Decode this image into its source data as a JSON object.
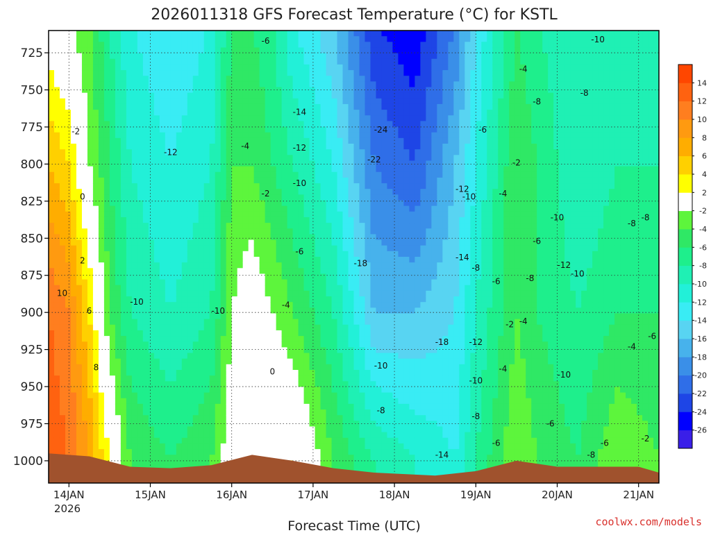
{
  "chart_data": {
    "type": "heatmap",
    "title": "2026011318 GFS Forecast Temperature (°C) for KSTL",
    "xlabel": "Forecast Time (UTC)",
    "ylabel": "",
    "credit": "coolwx.com/models",
    "y_axis": {
      "quantity": "pressure (hPa)",
      "inverted": true,
      "range": [
        1015,
        710
      ],
      "ticks": [
        725,
        750,
        775,
        800,
        825,
        850,
        875,
        900,
        925,
        950,
        975,
        1000
      ],
      "tick_labels": [
        "725",
        "750",
        "775",
        "800",
        "825",
        "850",
        "875",
        "900",
        "925",
        "950",
        "975",
        "1000"
      ]
    },
    "x_axis": {
      "start": "2026-01-13T18",
      "end": "2026-01-21T06",
      "ticks": [
        "2026-01-14T00",
        "2026-01-15T00",
        "2026-01-16T00",
        "2026-01-17T00",
        "2026-01-18T00",
        "2026-01-19T00",
        "2026-01-20T00",
        "2026-01-21T00"
      ],
      "tick_labels": [
        "14JAN",
        "15JAN",
        "16JAN",
        "17JAN",
        "18JAN",
        "19JAN",
        "20JAN",
        "21JAN"
      ],
      "year_label": "2026"
    },
    "grid": true,
    "colorbar": {
      "placement": "right",
      "levels": [
        -28,
        -26,
        -24,
        -22,
        -20,
        -18,
        -16,
        -14,
        -12,
        -10,
        -8,
        -6,
        -4,
        -2,
        2,
        4,
        6,
        8,
        10,
        12,
        14,
        16
      ],
      "colors": [
        "#3a1fe8",
        "#0000ff",
        "#1e45e6",
        "#2f6ee8",
        "#3a8fe8",
        "#47b2ec",
        "#58d4f2",
        "#39ecf4",
        "#22f0d8",
        "#1ff0b4",
        "#1eef8c",
        "#2fe865",
        "#5df53c",
        "#ffffff",
        "#ffff00",
        "#ffd000",
        "#ffad00",
        "#ff9a10",
        "#ff7e1f",
        "#ff6210",
        "#ff4600"
      ],
      "tick_labels": [
        "-26",
        "-24",
        "-22",
        "-20",
        "-18",
        "-16",
        "-14",
        "-12",
        "-10",
        "-8",
        "-6",
        "-4",
        "-2",
        "2",
        "4",
        "6",
        "8",
        "10",
        "12",
        "14"
      ]
    },
    "terrain_color": "#a0522d",
    "surface_pressure": [
      {
        "t": "2026-01-13T18",
        "p": 995
      },
      {
        "t": "2026-01-14T06",
        "p": 997
      },
      {
        "t": "2026-01-14T18",
        "p": 1004
      },
      {
        "t": "2026-01-15T06",
        "p": 1005
      },
      {
        "t": "2026-01-15T18",
        "p": 1003
      },
      {
        "t": "2026-01-16T06",
        "p": 996
      },
      {
        "t": "2026-01-16T18",
        "p": 1000
      },
      {
        "t": "2026-01-17T06",
        "p": 1005
      },
      {
        "t": "2026-01-17T18",
        "p": 1008
      },
      {
        "t": "2026-01-18T12",
        "p": 1010
      },
      {
        "t": "2026-01-19T00",
        "p": 1007
      },
      {
        "t": "2026-01-19T12",
        "p": 1000
      },
      {
        "t": "2026-01-20T00",
        "p": 1004
      },
      {
        "t": "2026-01-20T12",
        "p": 1004
      },
      {
        "t": "2026-01-21T00",
        "p": 1004
      },
      {
        "t": "2026-01-21T06",
        "p": 1008
      }
    ],
    "temperature_profiles": [
      {
        "t": "2026-01-13T18",
        "p": [
          700,
          800,
          900,
          1000
        ],
        "temp": [
          0,
          6,
          12,
          14
        ]
      },
      {
        "t": "2026-01-14T00",
        "p": [
          700,
          800,
          900,
          1000
        ],
        "temp": [
          -2,
          4,
          10,
          12
        ]
      },
      {
        "t": "2026-01-14T06",
        "p": [
          700,
          800,
          900,
          1000
        ],
        "temp": [
          -4,
          -2,
          4,
          8
        ]
      },
      {
        "t": "2026-01-14T12",
        "p": [
          700,
          800,
          900,
          1000
        ],
        "temp": [
          -8,
          -6,
          -4,
          2
        ]
      },
      {
        "t": "2026-01-14T18",
        "p": [
          700,
          800,
          900,
          1000
        ],
        "temp": [
          -12,
          -10,
          -8,
          -4
        ]
      },
      {
        "t": "2026-01-15T06",
        "p": [
          700,
          800,
          900,
          1000
        ],
        "temp": [
          -14,
          -12,
          -10,
          -6
        ]
      },
      {
        "t": "2026-01-15T18",
        "p": [
          700,
          800,
          900,
          1000
        ],
        "temp": [
          -12,
          -10,
          -8,
          -4
        ]
      },
      {
        "t": "2026-01-16T00",
        "p": [
          700,
          800,
          900,
          1000
        ],
        "temp": [
          -6,
          -4,
          -2,
          0
        ]
      },
      {
        "t": "2026-01-16T06",
        "p": [
          700,
          800,
          900,
          1000
        ],
        "temp": [
          -6,
          -4,
          0,
          2
        ]
      },
      {
        "t": "2026-01-16T12",
        "p": [
          700,
          800,
          900,
          1000
        ],
        "temp": [
          -8,
          -6,
          -2,
          2
        ]
      },
      {
        "t": "2026-01-16T18",
        "p": [
          700,
          800,
          900,
          1000
        ],
        "temp": [
          -12,
          -8,
          -4,
          2
        ]
      },
      {
        "t": "2026-01-17T06",
        "p": [
          700,
          800,
          900,
          1000
        ],
        "temp": [
          -16,
          -12,
          -8,
          -4
        ]
      },
      {
        "t": "2026-01-17T18",
        "p": [
          700,
          800,
          900,
          1000
        ],
        "temp": [
          -24,
          -20,
          -16,
          -8
        ]
      },
      {
        "t": "2026-01-18T06",
        "p": [
          700,
          800,
          900,
          1000
        ],
        "temp": [
          -26,
          -22,
          -16,
          -10
        ]
      },
      {
        "t": "2026-01-18T18",
        "p": [
          700,
          800,
          900,
          1000
        ],
        "temp": [
          -20,
          -16,
          -14,
          -12
        ]
      },
      {
        "t": "2026-01-19T00",
        "p": [
          700,
          800,
          900,
          1000
        ],
        "temp": [
          -14,
          -12,
          -10,
          -8
        ]
      },
      {
        "t": "2026-01-19T12",
        "p": [
          700,
          800,
          900,
          1000
        ],
        "temp": [
          -6,
          -4,
          -4,
          -2
        ]
      },
      {
        "t": "2026-01-19T18",
        "p": [
          700,
          800,
          900,
          1000
        ],
        "temp": [
          -8,
          -6,
          -6,
          -4
        ]
      },
      {
        "t": "2026-01-20T06",
        "p": [
          700,
          800,
          900,
          1000
        ],
        "temp": [
          -10,
          -10,
          -8,
          -6
        ]
      },
      {
        "t": "2026-01-20T18",
        "p": [
          700,
          800,
          900,
          1000
        ],
        "temp": [
          -10,
          -8,
          -6,
          -2
        ]
      },
      {
        "t": "2026-01-21T06",
        "p": [
          700,
          800,
          900,
          1000
        ],
        "temp": [
          -10,
          -8,
          -6,
          -4
        ]
      }
    ],
    "contour_labels": [
      {
        "t": "2026-01-15T06",
        "p": 792,
        "text": "-12"
      },
      {
        "t": "2026-01-16T04",
        "p": 788,
        "text": "-4"
      },
      {
        "t": "2026-01-16T10",
        "p": 820,
        "text": "-2"
      },
      {
        "t": "2026-01-16T10",
        "p": 717,
        "text": "-6"
      },
      {
        "t": "2026-01-16T20",
        "p": 765,
        "text": "-14"
      },
      {
        "t": "2026-01-16T20",
        "p": 789,
        "text": "-12"
      },
      {
        "t": "2026-01-16T20",
        "p": 813,
        "text": "-10"
      },
      {
        "t": "2026-01-16T20",
        "p": 859,
        "text": "-6"
      },
      {
        "t": "2026-01-16T16",
        "p": 895,
        "text": "-4"
      },
      {
        "t": "2026-01-16T12",
        "p": 940,
        "text": "0"
      },
      {
        "t": "2026-01-14T20",
        "p": 893,
        "text": "-10"
      },
      {
        "t": "2026-01-15T20",
        "p": 899,
        "text": "-10"
      },
      {
        "t": "2026-01-14T02",
        "p": 778,
        "text": "-2"
      },
      {
        "t": "2026-01-14T04",
        "p": 822,
        "text": "0"
      },
      {
        "t": "2026-01-14T04",
        "p": 865,
        "text": "2"
      },
      {
        "t": "2026-01-13T22",
        "p": 887,
        "text": "10"
      },
      {
        "t": "2026-01-14T06",
        "p": 899,
        "text": "6"
      },
      {
        "t": "2026-01-14T08",
        "p": 937,
        "text": "8"
      },
      {
        "t": "2026-01-17T20",
        "p": 777,
        "text": "-24"
      },
      {
        "t": "2026-01-17T18",
        "p": 797,
        "text": "-22"
      },
      {
        "t": "2026-01-17T14",
        "p": 867,
        "text": "-18"
      },
      {
        "t": "2026-01-17T20",
        "p": 936,
        "text": "-10"
      },
      {
        "t": "2026-01-17T20",
        "p": 966,
        "text": "-8"
      },
      {
        "t": "2026-01-18T14",
        "p": 920,
        "text": "-18"
      },
      {
        "t": "2026-01-18T14",
        "p": 996,
        "text": "-14"
      },
      {
        "t": "2026-01-18T20",
        "p": 817,
        "text": "-12"
      },
      {
        "t": "2026-01-18T22",
        "p": 822,
        "text": "-10"
      },
      {
        "t": "2026-01-18T20",
        "p": 863,
        "text": "-14"
      },
      {
        "t": "2026-01-19T00",
        "p": 870,
        "text": "-8"
      },
      {
        "t": "2026-01-19T00",
        "p": 920,
        "text": "-12"
      },
      {
        "t": "2026-01-19T00",
        "p": 946,
        "text": "-10"
      },
      {
        "t": "2026-01-19T00",
        "p": 970,
        "text": "-8"
      },
      {
        "t": "2026-01-19T06",
        "p": 988,
        "text": "-6"
      },
      {
        "t": "2026-01-19T02",
        "p": 777,
        "text": "-6"
      },
      {
        "t": "2026-01-19T08",
        "p": 820,
        "text": "-4"
      },
      {
        "t": "2026-01-19T06",
        "p": 879,
        "text": "-6"
      },
      {
        "t": "2026-01-19T08",
        "p": 938,
        "text": "-4"
      },
      {
        "t": "2026-01-19T10",
        "p": 908,
        "text": "-2"
      },
      {
        "t": "2026-01-19T12",
        "p": 799,
        "text": "-2"
      },
      {
        "t": "2026-01-19T14",
        "p": 736,
        "text": "-4"
      },
      {
        "t": "2026-01-19T18",
        "p": 758,
        "text": "-8"
      },
      {
        "t": "2026-01-19T14",
        "p": 906,
        "text": "-4"
      },
      {
        "t": "2026-01-19T16",
        "p": 877,
        "text": "-8"
      },
      {
        "t": "2026-01-19T18",
        "p": 852,
        "text": "-6"
      },
      {
        "t": "2026-01-20T00",
        "p": 836,
        "text": "-10"
      },
      {
        "t": "2026-01-20T02",
        "p": 868,
        "text": "-12"
      },
      {
        "t": "2026-01-20T06",
        "p": 874,
        "text": "-10"
      },
      {
        "t": "2026-01-20T08",
        "p": 752,
        "text": "-8"
      },
      {
        "t": "2026-01-20T12",
        "p": 716,
        "text": "-10"
      },
      {
        "t": "2026-01-20T02",
        "p": 942,
        "text": "-10"
      },
      {
        "t": "2026-01-19T22",
        "p": 975,
        "text": "-6"
      },
      {
        "t": "2026-01-20T10",
        "p": 996,
        "text": "-8"
      },
      {
        "t": "2026-01-20T14",
        "p": 988,
        "text": "-6"
      },
      {
        "t": "2026-01-20T22",
        "p": 840,
        "text": "-8"
      },
      {
        "t": "2026-01-21T02",
        "p": 836,
        "text": "-8"
      },
      {
        "t": "2026-01-20T22",
        "p": 923,
        "text": "-4"
      },
      {
        "t": "2026-01-21T04",
        "p": 916,
        "text": "-6"
      },
      {
        "t": "2026-01-21T02",
        "p": 985,
        "text": "-2"
      }
    ]
  }
}
